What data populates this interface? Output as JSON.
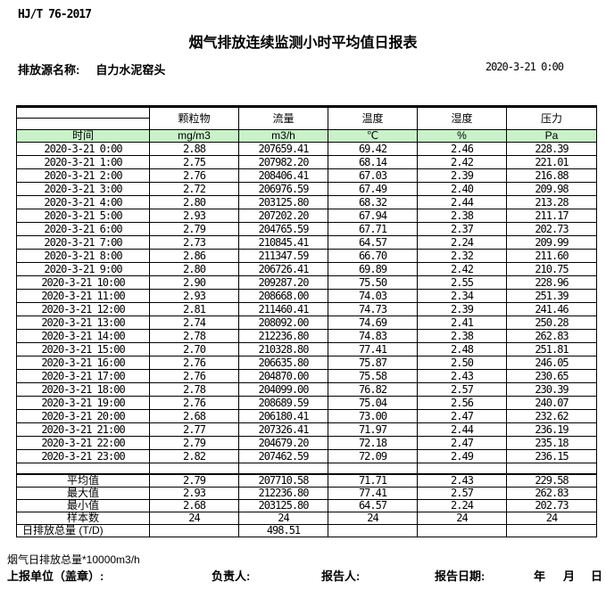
{
  "document": {
    "standard_no": "HJ/T 76-2017",
    "title": "烟气排放连续监测小时平均值日报表",
    "source_label": "排放源名称:",
    "source_name": "自力水泥窑头",
    "report_datetime": "2020-3-21 0:00"
  },
  "table": {
    "time_header": "时间",
    "columns": [
      {
        "name": "颗粒物",
        "unit": "mg/m3"
      },
      {
        "name": "流量",
        "unit": "m3/h"
      },
      {
        "name": "温度",
        "unit": "℃"
      },
      {
        "name": "湿度",
        "unit": "%"
      },
      {
        "name": "压力",
        "unit": "Pa"
      }
    ],
    "rows": [
      {
        "time": "2020-3-21 0:00",
        "values": [
          "2.88",
          "207659.41",
          "69.42",
          "2.46",
          "228.39"
        ]
      },
      {
        "time": "2020-3-21 1:00",
        "values": [
          "2.75",
          "207982.20",
          "68.14",
          "2.42",
          "221.01"
        ]
      },
      {
        "time": "2020-3-21 2:00",
        "values": [
          "2.76",
          "208406.41",
          "67.03",
          "2.39",
          "216.88"
        ]
      },
      {
        "time": "2020-3-21 3:00",
        "values": [
          "2.72",
          "206976.59",
          "67.49",
          "2.40",
          "209.98"
        ]
      },
      {
        "time": "2020-3-21 4:00",
        "values": [
          "2.80",
          "203125.80",
          "68.32",
          "2.44",
          "213.28"
        ]
      },
      {
        "time": "2020-3-21 5:00",
        "values": [
          "2.93",
          "207202.20",
          "67.94",
          "2.38",
          "211.17"
        ]
      },
      {
        "time": "2020-3-21 6:00",
        "values": [
          "2.79",
          "204765.59",
          "67.71",
          "2.37",
          "202.73"
        ]
      },
      {
        "time": "2020-3-21 7:00",
        "values": [
          "2.73",
          "210845.41",
          "64.57",
          "2.24",
          "209.99"
        ]
      },
      {
        "time": "2020-3-21 8:00",
        "values": [
          "2.86",
          "211347.59",
          "66.70",
          "2.32",
          "211.60"
        ]
      },
      {
        "time": "2020-3-21 9:00",
        "values": [
          "2.80",
          "206726.41",
          "69.89",
          "2.42",
          "210.75"
        ]
      },
      {
        "time": "2020-3-21 10:00",
        "values": [
          "2.90",
          "209287.20",
          "75.50",
          "2.55",
          "228.96"
        ]
      },
      {
        "time": "2020-3-21 11:00",
        "values": [
          "2.93",
          "208668.00",
          "74.03",
          "2.34",
          "251.39"
        ]
      },
      {
        "time": "2020-3-21 12:00",
        "values": [
          "2.81",
          "211460.41",
          "74.73",
          "2.39",
          "241.46"
        ]
      },
      {
        "time": "2020-3-21 13:00",
        "values": [
          "2.74",
          "208092.00",
          "74.69",
          "2.41",
          "250.28"
        ]
      },
      {
        "time": "2020-3-21 14:00",
        "values": [
          "2.78",
          "212236.80",
          "74.83",
          "2.38",
          "262.83"
        ]
      },
      {
        "time": "2020-3-21 15:00",
        "values": [
          "2.70",
          "210328.80",
          "77.41",
          "2.48",
          "251.81"
        ]
      },
      {
        "time": "2020-3-21 16:00",
        "values": [
          "2.76",
          "206635.80",
          "75.87",
          "2.50",
          "246.05"
        ]
      },
      {
        "time": "2020-3-21 17:00",
        "values": [
          "2.76",
          "204870.00",
          "75.58",
          "2.43",
          "230.65"
        ]
      },
      {
        "time": "2020-3-21 18:00",
        "values": [
          "2.78",
          "204099.00",
          "76.82",
          "2.57",
          "230.39"
        ]
      },
      {
        "time": "2020-3-21 19:00",
        "values": [
          "2.76",
          "208689.59",
          "75.04",
          "2.56",
          "240.07"
        ]
      },
      {
        "time": "2020-3-21 20:00",
        "values": [
          "2.68",
          "206180.41",
          "73.00",
          "2.47",
          "232.62"
        ]
      },
      {
        "time": "2020-3-21 21:00",
        "values": [
          "2.77",
          "207326.41",
          "71.97",
          "2.44",
          "236.19"
        ]
      },
      {
        "time": "2020-3-21 22:00",
        "values": [
          "2.79",
          "204679.20",
          "72.18",
          "2.47",
          "235.18"
        ]
      },
      {
        "time": "2020-3-21 23:00",
        "values": [
          "2.82",
          "207462.59",
          "72.09",
          "2.49",
          "236.15"
        ]
      }
    ],
    "summary": [
      {
        "label": "平均值",
        "values": [
          "2.79",
          "207710.58",
          "71.71",
          "2.43",
          "229.58"
        ],
        "label_align": "center"
      },
      {
        "label": "最大值",
        "values": [
          "2.93",
          "212236.80",
          "77.41",
          "2.57",
          "262.83"
        ],
        "label_align": "center"
      },
      {
        "label": "最小值",
        "values": [
          "2.68",
          "203125.80",
          "64.57",
          "2.24",
          "202.73"
        ],
        "label_align": "center"
      },
      {
        "label": "样本数",
        "values": [
          "24",
          "24",
          "24",
          "24",
          "24"
        ],
        "label_align": "center"
      },
      {
        "label": "日排放总量 (T/D)",
        "values": [
          "",
          "498.51",
          "",
          "",
          ""
        ],
        "label_align": "left"
      }
    ]
  },
  "footer": {
    "note": "烟气日排放总量*10000m3/h",
    "unit_label": "上报单位（盖章）:",
    "responsible_label": "负责人:",
    "reporter_label": "报告人:",
    "report_date_label": "报告日期:",
    "year_label": "年",
    "month_label": "月",
    "day_label": "日"
  },
  "colors": {
    "header_green": "#C9F2C9",
    "border": "#000000",
    "background": "#FFFFFF"
  }
}
